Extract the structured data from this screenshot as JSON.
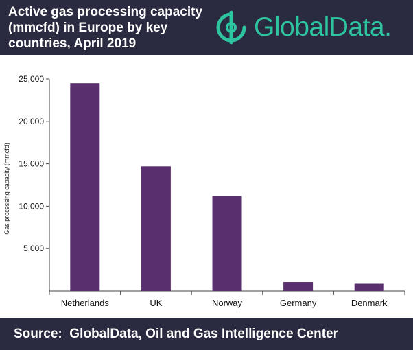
{
  "header": {
    "title": "Active gas processing capacity\n(mmcfd) in Europe by key\ncountries, April 2019",
    "logo_text": "GlobalData.",
    "logo_icon": "globaldata-logo-icon"
  },
  "colors": {
    "header_bg": "#2a2a40",
    "bar": "#5a2f6e",
    "logo": "#2ec4a0"
  },
  "chart_data": {
    "type": "bar",
    "title": "Active gas processing capacity (mmcfd) in Europe by key countries, April 2019",
    "xlabel": "",
    "ylabel": "Gas processing capacity (mmcfd)",
    "categories": [
      "Netherlands",
      "UK",
      "Norway",
      "Germany",
      "Denmark"
    ],
    "values": [
      24500,
      14700,
      11200,
      1050,
      850
    ],
    "ylim": [
      0,
      25000
    ],
    "yticks": [
      "5,000",
      "10,000",
      "15,000",
      "20,000",
      "25,000"
    ],
    "ytick_values": [
      5000,
      10000,
      15000,
      20000,
      25000
    ],
    "grid": false,
    "legend": "none"
  },
  "footer": {
    "source": "Source:  GlobalData, Oil and Gas Intelligence Center"
  }
}
